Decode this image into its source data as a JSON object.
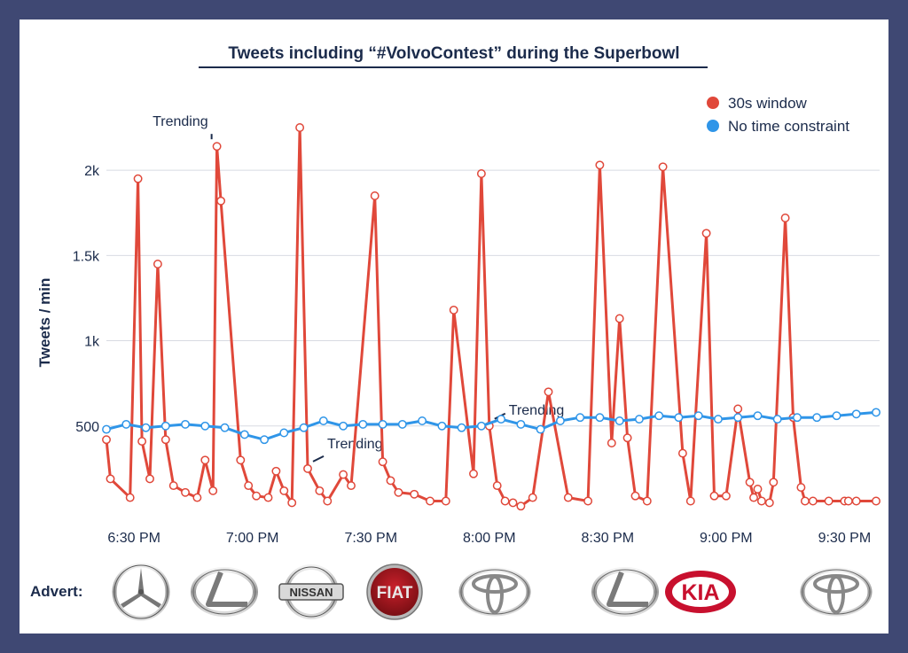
{
  "chart_data": {
    "type": "line",
    "title": "Tweets including “#VolvoContest” during the Superbowl",
    "ylabel": "Tweets / min",
    "xlabel": "",
    "ylim": [
      0,
      2250
    ],
    "xlim_minutes": [
      0,
      195
    ],
    "x_unit": "minutes after 6:23 PM",
    "yticks": [
      {
        "value": 500,
        "label": "500"
      },
      {
        "value": 1000,
        "label": "1k"
      },
      {
        "value": 1500,
        "label": "1.5k"
      },
      {
        "value": 2000,
        "label": "2k"
      }
    ],
    "xticks": [
      {
        "value": 7,
        "label": "6:30 PM"
      },
      {
        "value": 37,
        "label": "7:00 PM"
      },
      {
        "value": 67,
        "label": "7:30 PM"
      },
      {
        "value": 97,
        "label": "8:00 PM"
      },
      {
        "value": 127,
        "label": "8:30 PM"
      },
      {
        "value": 157,
        "label": "9:00 PM"
      },
      {
        "value": 187,
        "label": "9:30 PM"
      }
    ],
    "grid": true,
    "legend": "top-right",
    "series": [
      {
        "name": "30s window",
        "color": "#e0483a",
        "x": [
          0,
          1,
          6,
          8,
          9,
          11,
          13,
          15,
          17,
          20,
          23,
          25,
          27,
          28,
          29,
          34,
          36,
          38,
          41,
          43,
          45,
          47,
          49,
          51,
          54,
          56,
          60,
          62,
          68,
          70,
          72,
          74,
          78,
          82,
          86,
          88,
          93,
          95,
          97,
          99,
          101,
          103,
          105,
          108,
          112,
          117,
          122,
          125,
          128,
          130,
          132,
          134,
          137,
          141,
          146,
          148,
          152,
          154,
          157,
          160,
          163,
          164,
          165,
          166,
          168,
          169,
          172,
          174,
          176,
          177,
          179,
          183,
          187,
          188,
          190,
          195
        ],
        "values": [
          420,
          190,
          80,
          1950,
          410,
          190,
          1450,
          420,
          150,
          110,
          80,
          300,
          120,
          2140,
          1820,
          300,
          150,
          90,
          80,
          235,
          120,
          50,
          2250,
          250,
          120,
          60,
          215,
          150,
          1850,
          290,
          180,
          110,
          100,
          60,
          60,
          1180,
          220,
          1980,
          500,
          150,
          60,
          50,
          30,
          80,
          700,
          80,
          60,
          2030,
          400,
          1130,
          430,
          90,
          60,
          2020,
          340,
          60,
          1630,
          90,
          90,
          600,
          170,
          80,
          130,
          60,
          50,
          170,
          1720,
          550,
          140,
          60,
          60,
          60,
          60,
          60,
          60,
          60
        ]
      },
      {
        "name": "No time constraint",
        "color": "#2f95e8",
        "x": [
          0,
          5,
          10,
          15,
          20,
          25,
          30,
          35,
          40,
          45,
          50,
          55,
          60,
          65,
          70,
          75,
          80,
          85,
          90,
          95,
          100,
          105,
          110,
          115,
          120,
          125,
          130,
          135,
          140,
          145,
          150,
          155,
          160,
          165,
          170,
          175,
          180,
          185,
          190,
          195
        ],
        "values": [
          480,
          510,
          490,
          500,
          510,
          500,
          490,
          450,
          420,
          460,
          490,
          530,
          500,
          510,
          510,
          510,
          530,
          500,
          490,
          500,
          540,
          510,
          480,
          530,
          550,
          550,
          530,
          540,
          560,
          550,
          560,
          540,
          550,
          560,
          540,
          550,
          550,
          560,
          570,
          580
        ]
      }
    ],
    "annotations": [
      {
        "text": "Trending",
        "x": 28
      },
      {
        "text": "Trending",
        "x": 51
      },
      {
        "text": "Trending",
        "x": 97
      }
    ]
  },
  "adverts": {
    "label": "Advert:",
    "logos": [
      {
        "brand": "Mercedes-Benz",
        "icon": "mercedes-logo-icon",
        "text": ""
      },
      {
        "brand": "Lexus",
        "icon": "lexus-logo-icon",
        "text": ""
      },
      {
        "brand": "Nissan",
        "icon": "nissan-logo-icon",
        "text": "NISSAN"
      },
      {
        "brand": "Fiat",
        "icon": "fiat-logo-icon",
        "text": "FIAT"
      },
      {
        "brand": "Toyota",
        "icon": "toyota-logo-icon",
        "text": ""
      },
      {
        "brand": "Lexus",
        "icon": "lexus-logo-icon",
        "text": ""
      },
      {
        "brand": "Kia",
        "icon": "kia-logo-icon",
        "text": "KIA"
      },
      {
        "brand": "Toyota",
        "icon": "toyota-logo-icon",
        "text": ""
      }
    ]
  }
}
